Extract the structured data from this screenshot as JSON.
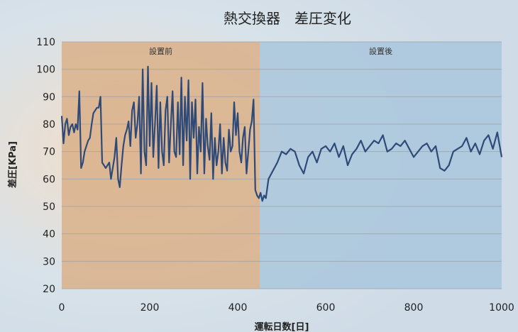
{
  "chart_data": {
    "type": "line",
    "title": "熱交換器　差圧変化",
    "xlabel": "運転日数[日]",
    "ylabel": "差圧[KPa]",
    "xlim": [
      0,
      1000
    ],
    "ylim": [
      20,
      110
    ],
    "x_ticks": [
      0,
      200,
      400,
      600,
      800,
      1000
    ],
    "y_ticks": [
      20,
      30,
      40,
      50,
      60,
      70,
      80,
      90,
      100,
      110
    ],
    "grid": "horizontal",
    "regions": [
      {
        "label": "設置前",
        "x_start": 0,
        "x_end": 450,
        "color": "#d9b08a"
      },
      {
        "label": "設置後",
        "x_start": 450,
        "x_end": 1000,
        "color": "#a9c6dc"
      }
    ],
    "series": [
      {
        "color": "#2e4a78",
        "x": [
          0,
          4,
          8,
          12,
          16,
          20,
          24,
          28,
          32,
          36,
          40,
          44,
          48,
          52,
          56,
          60,
          64,
          68,
          72,
          76,
          80,
          84,
          88,
          92,
          96,
          100,
          104,
          108,
          112,
          116,
          120,
          124,
          128,
          132,
          136,
          140,
          144,
          148,
          152,
          156,
          160,
          164,
          168,
          172,
          176,
          180,
          184,
          188,
          192,
          196,
          200,
          204,
          208,
          212,
          216,
          220,
          224,
          228,
          232,
          236,
          240,
          244,
          248,
          252,
          256,
          260,
          264,
          268,
          272,
          276,
          280,
          284,
          288,
          292,
          296,
          300,
          304,
          308,
          312,
          316,
          320,
          324,
          328,
          332,
          336,
          340,
          344,
          348,
          352,
          356,
          360,
          364,
          368,
          372,
          376,
          380,
          384,
          388,
          392,
          396,
          400,
          404,
          408,
          412,
          416,
          420,
          424,
          428,
          432,
          436,
          440,
          444,
          448,
          452,
          456,
          460,
          464,
          470,
          480,
          490,
          500,
          510,
          520,
          530,
          540,
          550,
          560,
          570,
          580,
          590,
          600,
          610,
          620,
          630,
          640,
          650,
          660,
          670,
          680,
          690,
          700,
          710,
          720,
          730,
          740,
          750,
          760,
          770,
          780,
          790,
          800,
          810,
          820,
          830,
          840,
          850,
          860,
          870,
          880,
          890,
          900,
          910,
          920,
          930,
          940,
          950,
          960,
          970,
          980,
          990,
          1000
        ],
        "y": [
          83,
          73,
          80,
          82,
          76,
          79,
          80,
          77,
          80,
          78,
          92,
          64,
          66,
          70,
          72,
          74,
          75,
          80,
          84,
          85,
          86,
          86,
          90,
          66,
          65,
          64,
          65,
          66,
          60,
          64,
          68,
          75,
          60,
          57,
          65,
          72,
          76,
          78,
          81,
          72,
          85,
          88,
          75,
          80,
          90,
          62,
          100,
          70,
          65,
          101,
          72,
          95,
          68,
          80,
          94,
          64,
          88,
          70,
          65,
          85,
          90,
          66,
          80,
          92,
          70,
          68,
          88,
          69,
          97,
          65,
          90,
          74,
          96,
          60,
          88,
          75,
          89,
          62,
          79,
          70,
          95,
          62,
          82,
          72,
          67,
          84,
          60,
          75,
          65,
          70,
          80,
          62,
          75,
          66,
          63,
          78,
          70,
          72,
          88,
          76,
          84,
          70,
          66,
          75,
          79,
          62,
          70,
          78,
          81,
          89,
          56,
          54,
          53,
          55,
          52,
          54,
          53,
          60,
          63,
          66,
          70,
          69,
          71,
          70,
          65,
          62,
          68,
          70,
          66,
          71,
          72,
          70,
          73,
          68,
          72,
          65,
          69,
          71,
          74,
          70,
          72,
          74,
          73,
          76,
          70,
          71,
          73,
          72,
          74,
          71,
          68,
          70,
          72,
          73,
          70,
          72,
          64,
          63,
          65,
          70,
          71,
          72,
          75,
          70,
          73,
          69,
          74,
          76,
          71,
          77,
          68
        ]
      }
    ]
  }
}
